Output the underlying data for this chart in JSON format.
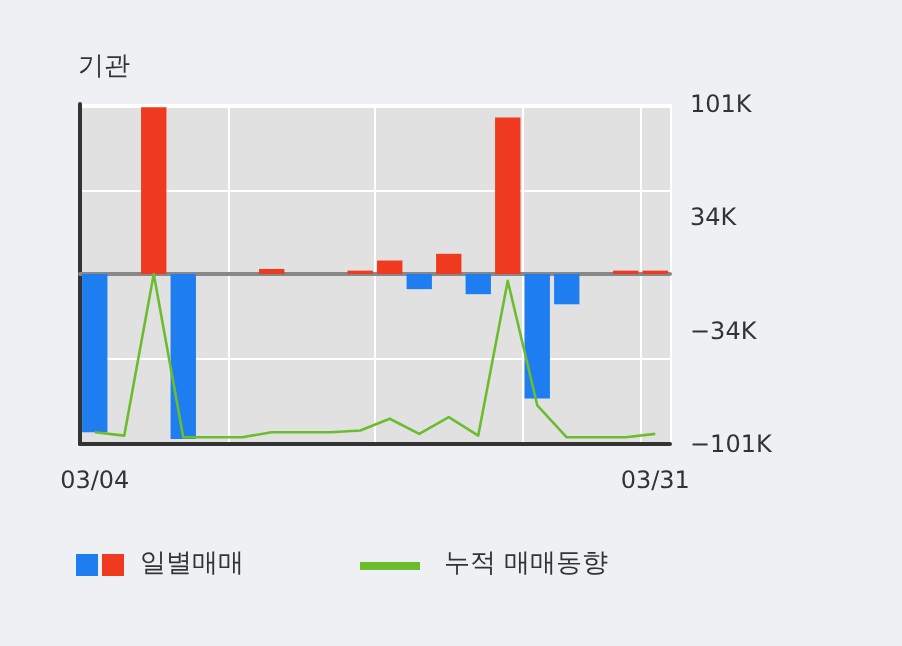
{
  "chart_data": {
    "type": "bar",
    "title": "기관",
    "categories": [
      "03/04",
      null,
      null,
      null,
      null,
      null,
      null,
      null,
      null,
      null,
      null,
      null,
      null,
      null,
      null,
      null,
      null,
      null,
      null,
      "03/31"
    ],
    "series": [
      {
        "name": "일별매매",
        "colors": [
          "#1e7ef0",
          null,
          "#f03a1f",
          "#1e7ef0",
          null,
          null,
          "#f03a1f",
          null,
          null,
          "#f03a1f",
          "#f03a1f",
          "#1e7ef0",
          "#f03a1f",
          "#1e7ef0",
          "#f03a1f",
          "#1e7ef0",
          "#1e7ef0",
          null,
          "#f03a1f",
          "#f03a1f"
        ],
        "values": [
          -94000,
          null,
          99000,
          -98000,
          null,
          null,
          3000,
          null,
          null,
          2000,
          8000,
          -9000,
          12000,
          -12000,
          93000,
          -74000,
          -18000,
          null,
          2000,
          2000
        ]
      },
      {
        "name": "누적 매매동향",
        "type": "line",
        "color": "#6cbd2e",
        "values": [
          -94000,
          -96000,
          0,
          -97000,
          -97000,
          -97000,
          -94000,
          -94000,
          -94000,
          -93000,
          -86000,
          -95000,
          -85000,
          -96000,
          -4000,
          -78000,
          -97000,
          -97000,
          -97000,
          -95000
        ]
      }
    ],
    "ylim": [
      -101000,
      101000
    ],
    "yticks": [
      {
        "value": -101000,
        "label": "−101K"
      },
      {
        "value": -34000,
        "label": "−34K"
      },
      {
        "value": 34000,
        "label": "34K"
      },
      {
        "value": 101000,
        "label": "101K"
      }
    ],
    "grid": true,
    "legend": "bottom",
    "marker": "none"
  }
}
